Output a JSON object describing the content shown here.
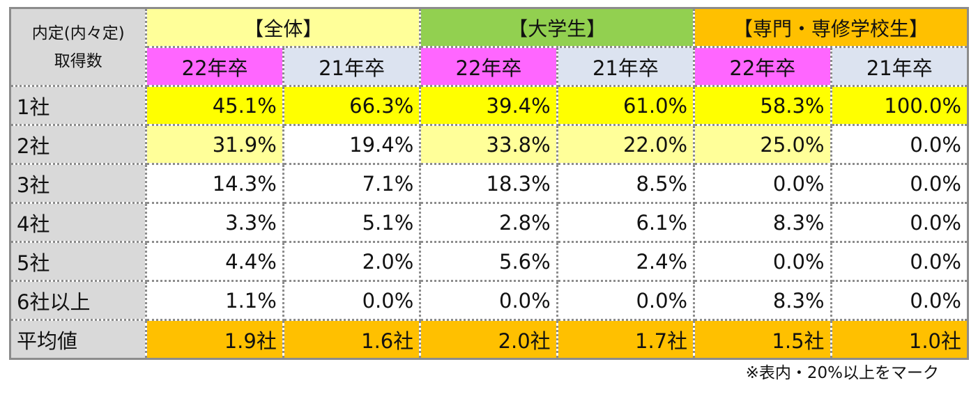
{
  "header": {
    "corner_line1": "内定(内々定)",
    "corner_line2": "取得数",
    "groups": [
      "【全体】",
      "【大学生】",
      "【専門・専修学校生】"
    ],
    "years": [
      "22年卒",
      "21年卒",
      "22年卒",
      "21年卒",
      "22年卒",
      "21年卒"
    ]
  },
  "rows": [
    {
      "label": "1社",
      "values": [
        "45.1%",
        "66.3%",
        "39.4%",
        "61.0%",
        "58.3%",
        "100.0%"
      ]
    },
    {
      "label": "2社",
      "values": [
        "31.9%",
        "19.4%",
        "33.8%",
        "22.0%",
        "25.0%",
        "0.0%"
      ]
    },
    {
      "label": "3社",
      "values": [
        "14.3%",
        "7.1%",
        "18.3%",
        "8.5%",
        "0.0%",
        "0.0%"
      ]
    },
    {
      "label": "4社",
      "values": [
        "3.3%",
        "5.1%",
        "2.8%",
        "6.1%",
        "8.3%",
        "0.0%"
      ]
    },
    {
      "label": "5社",
      "values": [
        "4.4%",
        "2.0%",
        "5.6%",
        "2.4%",
        "0.0%",
        "0.0%"
      ]
    },
    {
      "label": "6社以上",
      "values": [
        "1.1%",
        "0.0%",
        "0.0%",
        "0.0%",
        "8.3%",
        "0.0%"
      ]
    },
    {
      "label": "平均値",
      "values": [
        "1.9社",
        "1.6社",
        "2.0社",
        "1.7社",
        "1.5社",
        "1.0社"
      ]
    }
  ],
  "colors": {
    "group_all": "#ffff99",
    "group_university": "#92d050",
    "group_vocational": "#ffc000",
    "year_22": "#ff66ff",
    "year_21": "#dce3f0",
    "highlight_strong": "#ffff00",
    "highlight_light": "#ffff99",
    "average_row": "#ffc000",
    "label_column": "#d9d9d9"
  },
  "note": "※表内・20%以上をマーク"
}
